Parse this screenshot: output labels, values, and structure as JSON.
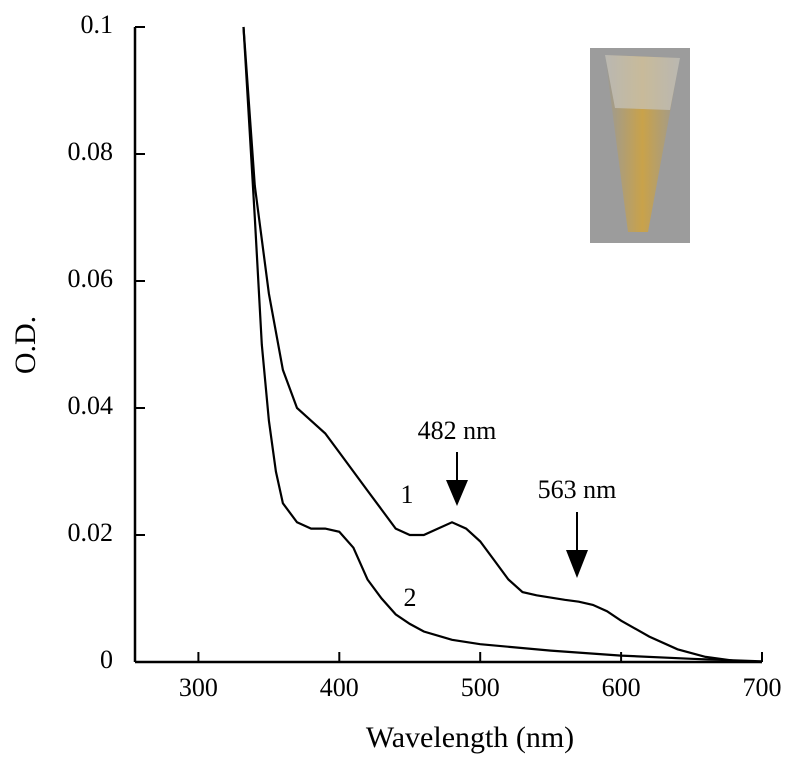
{
  "chart_data": {
    "type": "line",
    "x_label": "Wavelength (nm)",
    "y_label": "O.D.",
    "xlim": [
      255,
      700
    ],
    "xticks": [
      300,
      400,
      500,
      600,
      700
    ],
    "ylim": [
      0,
      0.1
    ],
    "yticks": [
      0,
      0.02,
      0.04,
      0.06,
      0.08,
      0.1
    ],
    "series": [
      {
        "name": "1",
        "color": "#000000",
        "x": [
          332,
          340,
          350,
          360,
          370,
          380,
          390,
          400,
          410,
          420,
          430,
          440,
          450,
          460,
          470,
          480,
          490,
          500,
          510,
          520,
          530,
          540,
          560,
          570,
          580,
          590,
          600,
          620,
          640,
          660,
          680,
          700
        ],
        "values": [
          0.1,
          0.075,
          0.058,
          0.046,
          0.04,
          0.038,
          0.036,
          0.033,
          0.03,
          0.027,
          0.024,
          0.021,
          0.02,
          0.02,
          0.021,
          0.022,
          0.021,
          0.019,
          0.016,
          0.013,
          0.011,
          0.0105,
          0.0098,
          0.0095,
          0.009,
          0.008,
          0.0065,
          0.004,
          0.002,
          0.0008,
          0.0002,
          0
        ]
      },
      {
        "name": "2",
        "color": "#000000",
        "x": [
          332,
          340,
          345,
          350,
          355,
          360,
          370,
          380,
          390,
          400,
          410,
          420,
          430,
          440,
          450,
          460,
          480,
          500,
          550,
          600,
          650,
          700
        ],
        "values": [
          0.1,
          0.07,
          0.05,
          0.038,
          0.03,
          0.025,
          0.022,
          0.021,
          0.021,
          0.0205,
          0.018,
          0.013,
          0.01,
          0.0075,
          0.006,
          0.0048,
          0.0035,
          0.0028,
          0.0018,
          0.001,
          0.0005,
          0.0001
        ]
      }
    ],
    "annotations": [
      "482 nm",
      "563 nm"
    ]
  }
}
